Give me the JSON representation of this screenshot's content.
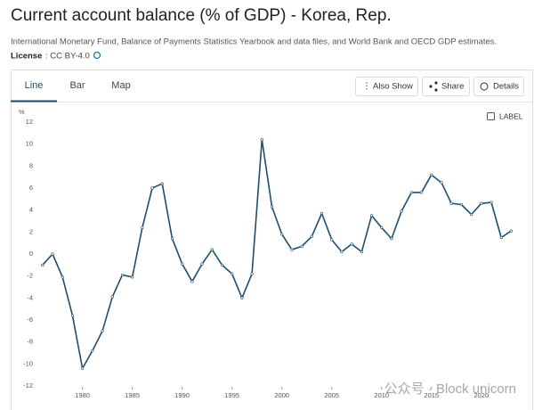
{
  "header": {
    "title": "Current account balance (% of GDP) - Korea, Rep.",
    "source": "International Monetary Fund, Balance of Payments Statistics Yearbook and data files, and World Bank and OECD GDP estimates.",
    "license_label": "License",
    "license_value": ": CC BY-4.0"
  },
  "tabs": [
    "Line",
    "Bar",
    "Map"
  ],
  "buttons": [
    "Also Show",
    "Share",
    "Details"
  ],
  "label_toggle": "LABEL",
  "watermark": "公众号 · Block unicorn",
  "chart_data": {
    "type": "line",
    "y_label": "%",
    "color": "#1d4e6f",
    "grid": false,
    "x": [
      1976,
      1977,
      1978,
      1979,
      1980,
      1981,
      1982,
      1983,
      1984,
      1985,
      1986,
      1987,
      1988,
      1989,
      1990,
      1991,
      1992,
      1993,
      1994,
      1995,
      1996,
      1997,
      1998,
      1999,
      2000,
      2001,
      2002,
      2003,
      2004,
      2005,
      2006,
      2007,
      2008,
      2009,
      2010,
      2011,
      2012,
      2013,
      2014,
      2015,
      2016,
      2017,
      2018,
      2019,
      2020,
      2021,
      2022,
      2023
    ],
    "values": [
      -1.0,
      0.0,
      -2.1,
      -5.6,
      -10.4,
      -8.8,
      -7.0,
      -3.9,
      -1.9,
      -2.1,
      2.4,
      6.0,
      6.4,
      1.4,
      -0.9,
      -2.5,
      -0.9,
      0.4,
      -1.0,
      -1.8,
      -4.0,
      -1.8,
      10.4,
      4.3,
      1.8,
      0.4,
      0.7,
      1.6,
      3.7,
      1.3,
      0.2,
      0.9,
      0.2,
      3.5,
      2.4,
      1.4,
      3.9,
      5.6,
      5.6,
      7.2,
      6.5,
      4.6,
      4.5,
      3.6,
      4.6,
      4.7,
      1.5,
      2.1
    ],
    "xlim": [
      1975.3,
      2023.5
    ],
    "xticks": [
      1980,
      1985,
      1990,
      1995,
      2000,
      2005,
      2010,
      2015,
      2020
    ],
    "ylim": [
      -12,
      12
    ],
    "yticks": [
      -12,
      -10,
      -8,
      -6,
      -4,
      -2,
      0,
      2,
      4,
      6,
      8,
      10,
      12
    ]
  }
}
